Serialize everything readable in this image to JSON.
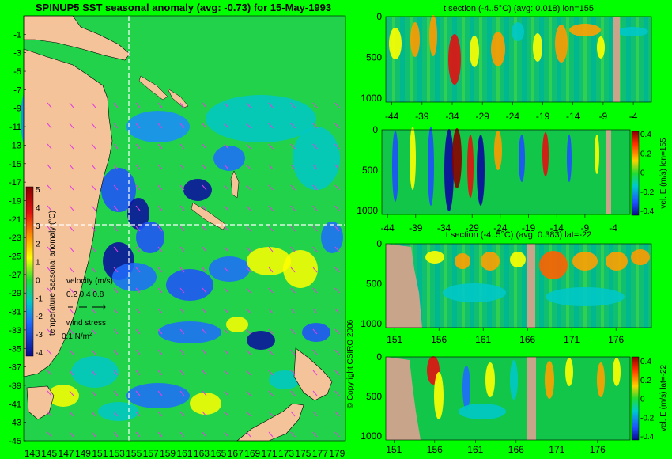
{
  "colors": {
    "page_background": "#01ff00",
    "land": "#f5c39a",
    "gap": "#c8a48a",
    "map_ocean": "#22d24a",
    "vector_arrows": "#e040e0",
    "crosshair": "#ffffff"
  },
  "chart_data": [
    {
      "type": "heatmap",
      "title": "SPINUP5 SST seasonal anomaly (avg: -0.73) for 15-May-1993",
      "x_tick_labels": [
        "143",
        "145",
        "147",
        "149",
        "151",
        "153",
        "155",
        "157",
        "159",
        "161",
        "163",
        "165",
        "167",
        "169",
        "171",
        "173",
        "175",
        "177",
        "179"
      ],
      "y_tick_labels": [
        "-1",
        "-3",
        "-5",
        "-7",
        "-9",
        "-11",
        "-13",
        "-15",
        "-17",
        "-19",
        "-21",
        "-23",
        "-25",
        "-27",
        "-29",
        "-31",
        "-33",
        "-35",
        "-37",
        "-39",
        "-41",
        "-43",
        "-45"
      ],
      "xlim": [
        142,
        180
      ],
      "ylim": [
        -45,
        1
      ],
      "crosshair": {
        "lon": 155,
        "lat": -22
      },
      "colorbar": {
        "label": "temperature seasonal anomaly (°C)",
        "tick_labels": [
          "5",
          "4",
          "3",
          "2",
          "1",
          "0",
          "-1",
          "-2",
          "-3",
          "-4"
        ],
        "range": [
          -4,
          5
        ]
      },
      "legend_velocity": {
        "title": "velocity (m/s)",
        "values": "0.2 0.4 0.8"
      },
      "legend_wind": {
        "title": "wind stress",
        "value": "0.1 N/m",
        "exponent": "2"
      },
      "copyright": "© Copyright CSIRO 2006"
    },
    {
      "type": "heatmap",
      "title": "t section (-4..5°C) (avg: 0.018) lon=155",
      "x_tick_labels": [
        "-44",
        "-39",
        "-34",
        "-29",
        "-24",
        "-19",
        "-14",
        "-9",
        "-4"
      ],
      "y_tick_labels": [
        "0",
        "500",
        "1000"
      ],
      "xlim": [
        -45,
        -1
      ],
      "ylim": [
        0,
        1050
      ]
    },
    {
      "type": "heatmap",
      "title": "",
      "x_tick_labels": [
        "-44",
        "-39",
        "-34",
        "-29",
        "-24",
        "-19",
        "-14",
        "-9",
        "-4"
      ],
      "y_tick_labels": [
        "0",
        "500",
        "1000"
      ],
      "xlim": [
        -45,
        -1
      ],
      "ylim": [
        0,
        1050
      ],
      "colorbar": {
        "label": "vel. E (m/s) lon=155",
        "tick_labels": [
          "0.4",
          "0.2",
          "0",
          "-0.2",
          "-0.4"
        ],
        "range": [
          -0.4,
          0.4
        ]
      }
    },
    {
      "type": "heatmap",
      "title": "t section (-4..5°C) (avg: 0.383) lat=-22",
      "x_tick_labels": [
        "151",
        "156",
        "161",
        "166",
        "171",
        "176"
      ],
      "y_tick_labels": [
        "0",
        "500",
        "1000"
      ],
      "xlim": [
        150,
        180
      ],
      "ylim": [
        0,
        1050
      ]
    },
    {
      "type": "heatmap",
      "title": "",
      "x_tick_labels": [
        "151",
        "156",
        "161",
        "166",
        "171",
        "176"
      ],
      "y_tick_labels": [
        "0",
        "500",
        "1000"
      ],
      "xlim": [
        150,
        180
      ],
      "ylim": [
        0,
        1050
      ],
      "colorbar": {
        "label": "vel. E (m/s) lat=-22",
        "tick_labels": [
          "0.4",
          "0.2",
          "0",
          "-0.2",
          "-0.4"
        ],
        "range": [
          -0.4,
          0.4
        ]
      }
    }
  ]
}
